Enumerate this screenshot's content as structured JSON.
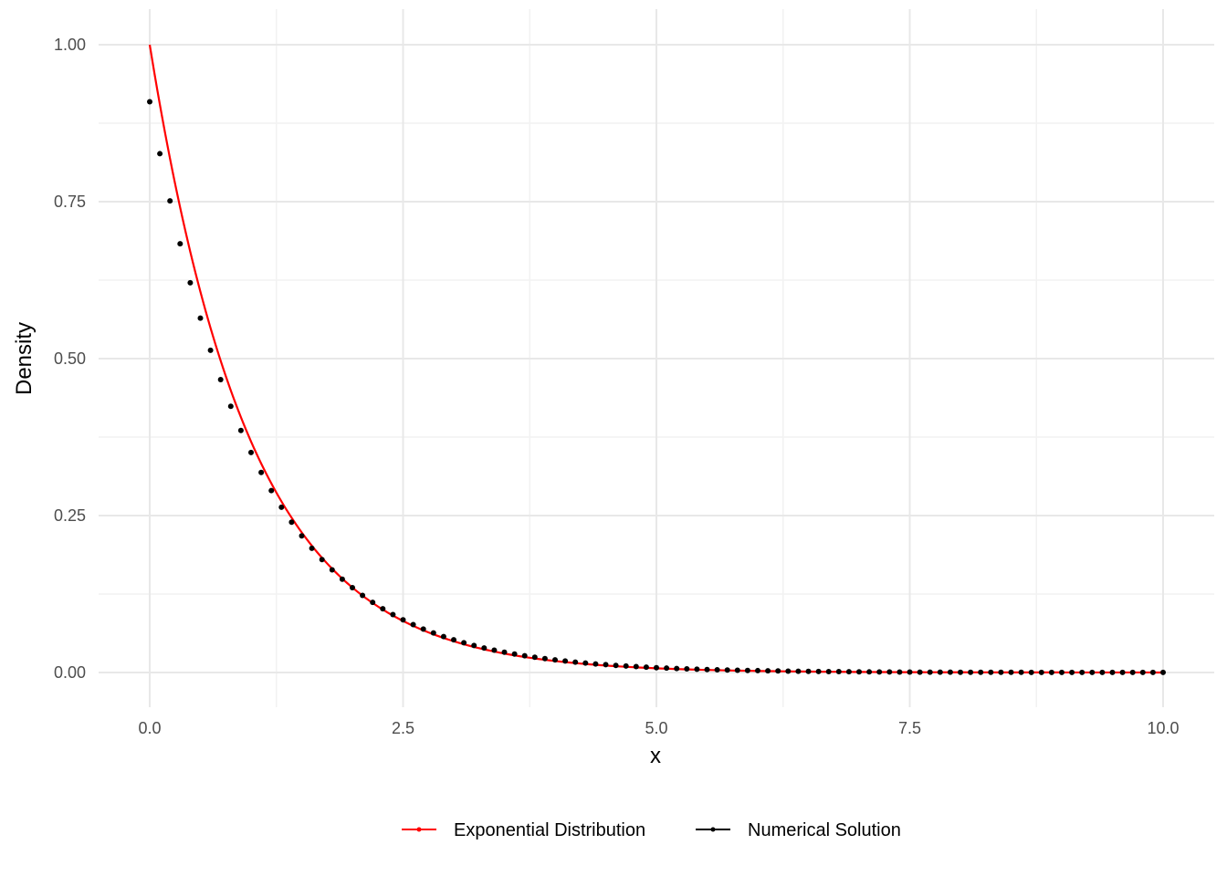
{
  "chart_data": {
    "type": "line",
    "title": "",
    "xlabel": "x",
    "ylabel": "Density",
    "xlim": [
      0,
      10
    ],
    "ylim": [
      0,
      1
    ],
    "x_ticks": [
      "0.0",
      "2.5",
      "5.0",
      "7.5",
      "10.0"
    ],
    "y_ticks": [
      "0.00",
      "0.25",
      "0.50",
      "0.75",
      "1.00"
    ],
    "grid": true,
    "legend_position": "bottom",
    "series": [
      {
        "name": "Exponential Distribution",
        "kind": "line",
        "color": "#ff0000",
        "function": "exp(-x)",
        "x_range": [
          0,
          10
        ]
      },
      {
        "name": "Numerical Solution",
        "kind": "points",
        "color": "#000000",
        "x": [
          0.0,
          0.1,
          0.2,
          0.3,
          0.4,
          0.5,
          0.6,
          0.7,
          0.8,
          0.9,
          1.0,
          1.1,
          1.2,
          1.3,
          1.4,
          1.5,
          1.6,
          1.7,
          1.8,
          1.9,
          2.0,
          2.1,
          2.2,
          2.3,
          2.4,
          2.5,
          2.6,
          2.7,
          2.8,
          2.9,
          3.0,
          3.1,
          3.2,
          3.3,
          3.4,
          3.5,
          3.6,
          3.7,
          3.8,
          3.9,
          4.0,
          4.1,
          4.2,
          4.3,
          4.4,
          4.5,
          4.6,
          4.7,
          4.8,
          4.9,
          5.0,
          5.1,
          5.2,
          5.3,
          5.4,
          5.5,
          5.6,
          5.7,
          5.8,
          5.9,
          6.0,
          6.1,
          6.2,
          6.3,
          6.4,
          6.5,
          6.6,
          6.7,
          6.8,
          6.9,
          7.0,
          7.1,
          7.2,
          7.3,
          7.4,
          7.5,
          7.6,
          7.7,
          7.8,
          7.9,
          8.0,
          8.1,
          8.2,
          8.3,
          8.4,
          8.5,
          8.6,
          8.7,
          8.8,
          8.9,
          9.0,
          9.1,
          9.2,
          9.3,
          9.4,
          9.5,
          9.6,
          9.7,
          9.8,
          9.9,
          10.0
        ],
        "y": [
          0.9091,
          0.8264,
          0.7513,
          0.683,
          0.6209,
          0.5645,
          0.5132,
          0.4665,
          0.4241,
          0.3855,
          0.3505,
          0.3186,
          0.2897,
          0.2633,
          0.2394,
          0.2176,
          0.1978,
          0.1799,
          0.1635,
          0.1486,
          0.1351,
          0.1228,
          0.1117,
          0.1015,
          0.0923,
          0.0839,
          0.0763,
          0.0693,
          0.063,
          0.0573,
          0.0521,
          0.0474,
          0.0431,
          0.0391,
          0.0356,
          0.0323,
          0.0294,
          0.0267,
          0.0243,
          0.0221,
          0.0201,
          0.0183,
          0.0166,
          0.0151,
          0.0137,
          0.0125,
          0.0113,
          0.0103,
          0.0094,
          0.0085,
          0.0077,
          0.007,
          0.0064,
          0.0058,
          0.0053,
          0.0048,
          0.0044,
          0.004,
          0.0036,
          0.0033,
          0.003,
          0.0027,
          0.0025,
          0.0022,
          0.002,
          0.0019,
          0.0017,
          0.0015,
          0.0014,
          0.0013,
          0.0011,
          0.001,
          0.0009,
          0.0009,
          0.0008,
          0.0007,
          0.0006,
          0.0006,
          0.0005,
          0.0005,
          0.0004,
          0.0004,
          0.0004,
          0.0003,
          0.0003,
          0.0003,
          0.0003,
          0.0002,
          0.0002,
          0.0002,
          0.0002,
          0.0002,
          0.0001,
          0.0001,
          0.0001,
          0.0001,
          0.0001,
          0.0001,
          0.0001,
          0.0001,
          0.0001
        ]
      }
    ]
  }
}
